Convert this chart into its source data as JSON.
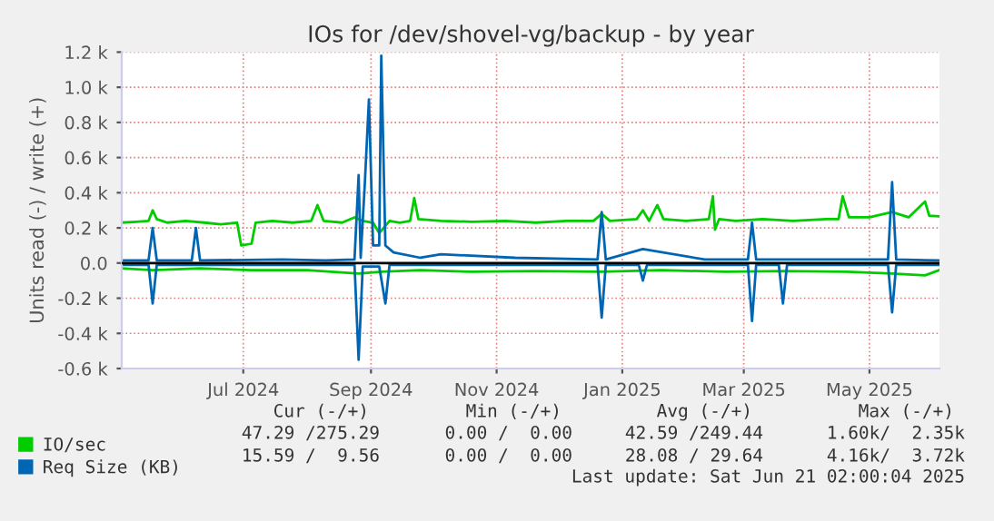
{
  "chart_data": {
    "type": "line",
    "title": "IOs for /dev/shovel-vg/backup - by year",
    "ylabel": "Units read (-) / write (+)",
    "xlim": [
      "2024-05-03",
      "2025-06-04"
    ],
    "xticks": [
      {
        "value": "2024-07-01",
        "label": "Jul 2024"
      },
      {
        "value": "2024-09-01",
        "label": "Sep 2024"
      },
      {
        "value": "2024-11-01",
        "label": "Nov 2024"
      },
      {
        "value": "2025-01-01",
        "label": "Jan 2025"
      },
      {
        "value": "2025-03-01",
        "label": "Mar 2025"
      },
      {
        "value": "2025-05-01",
        "label": "May 2025"
      }
    ],
    "ylim": [
      -600,
      1200
    ],
    "yticks": [
      {
        "value": -600,
        "label": "-0.6 k"
      },
      {
        "value": -400,
        "label": "-0.4 k"
      },
      {
        "value": -200,
        "label": "-0.2 k"
      },
      {
        "value": 0,
        "label": "0.0"
      },
      {
        "value": 200,
        "label": "0.2 k"
      },
      {
        "value": 400,
        "label": "0.4 k"
      },
      {
        "value": 600,
        "label": "0.6 k"
      },
      {
        "value": 800,
        "label": "0.8 k"
      },
      {
        "value": 1000,
        "label": "1.0 k"
      },
      {
        "value": 1200,
        "label": "1.2 k"
      }
    ],
    "grid": true,
    "legend": "bottom",
    "marker": "none",
    "line_style": "solid",
    "ref_lines": [
      {
        "axis": "y",
        "value": 0,
        "color": "#000000"
      }
    ],
    "series": [
      {
        "name": "IO/sec",
        "color": "#00cc00",
        "x": [
          "2024-05-03",
          "2024-05-10",
          "2024-05-16",
          "2024-05-18",
          "2024-05-20",
          "2024-05-25",
          "2024-06-03",
          "2024-06-12",
          "2024-06-20",
          "2024-06-28",
          "2024-06-30",
          "2024-07-05",
          "2024-07-07",
          "2024-07-15",
          "2024-07-25",
          "2024-08-03",
          "2024-08-06",
          "2024-08-09",
          "2024-08-18",
          "2024-08-24",
          "2024-08-28",
          "2024-09-02",
          "2024-09-05",
          "2024-09-10",
          "2024-09-15",
          "2024-09-20",
          "2024-09-22",
          "2024-09-24",
          "2024-10-05",
          "2024-10-20",
          "2024-11-05",
          "2024-11-20",
          "2024-12-05",
          "2024-12-18",
          "2024-12-22",
          "2024-12-26",
          "2025-01-08",
          "2025-01-11",
          "2025-01-14",
          "2025-01-18",
          "2025-01-21",
          "2025-02-01",
          "2025-02-12",
          "2025-02-14",
          "2025-02-15",
          "2025-02-17",
          "2025-02-25",
          "2025-03-10",
          "2025-03-25",
          "2025-04-10",
          "2025-04-16",
          "2025-04-18",
          "2025-04-21",
          "2025-05-01",
          "2025-05-12",
          "2025-05-20",
          "2025-05-28",
          "2025-05-30",
          "2025-06-04"
        ],
        "values": [
          230,
          235,
          240,
          300,
          250,
          230,
          240,
          230,
          220,
          230,
          100,
          110,
          230,
          240,
          230,
          240,
          330,
          240,
          230,
          260,
          240,
          230,
          170,
          240,
          230,
          240,
          370,
          250,
          240,
          235,
          240,
          230,
          240,
          240,
          280,
          240,
          250,
          300,
          240,
          330,
          250,
          240,
          250,
          380,
          190,
          250,
          240,
          250,
          240,
          250,
          250,
          380,
          260,
          260,
          290,
          260,
          350,
          270,
          265
        ]
      },
      {
        "color": "#00cc00",
        "x": [
          "2024-05-03",
          "2024-05-18",
          "2024-06-10",
          "2024-07-05",
          "2024-08-01",
          "2024-08-26",
          "2024-09-06",
          "2024-09-25",
          "2024-10-20",
          "2024-11-20",
          "2024-12-22",
          "2025-01-20",
          "2025-02-20",
          "2025-03-20",
          "2025-04-20",
          "2025-05-12",
          "2025-05-28",
          "2025-06-04"
        ],
        "values": [
          -30,
          -40,
          -30,
          -40,
          -40,
          -60,
          -50,
          -40,
          -50,
          -45,
          -50,
          -40,
          -50,
          -45,
          -50,
          -60,
          -70,
          -40
        ]
      },
      {
        "name": "Req Size (KB)",
        "color": "#0066b3",
        "x": [
          "2024-05-03",
          "2024-05-16",
          "2024-05-18",
          "2024-05-20",
          "2024-06-06",
          "2024-06-08",
          "2024-06-10",
          "2024-07-20",
          "2024-08-10",
          "2024-08-24",
          "2024-08-26",
          "2024-08-27",
          "2024-08-29",
          "2024-08-31",
          "2024-09-02",
          "2024-09-05",
          "2024-09-06",
          "2024-09-08",
          "2024-09-12",
          "2024-09-25",
          "2024-10-05",
          "2024-11-10",
          "2024-12-20",
          "2024-12-22",
          "2024-12-24",
          "2025-01-11",
          "2025-02-10",
          "2025-03-03",
          "2025-03-05",
          "2025-03-07",
          "2025-04-10",
          "2025-05-10",
          "2025-05-12",
          "2025-05-14",
          "2025-06-04"
        ],
        "values": [
          15,
          15,
          200,
          15,
          15,
          200,
          15,
          20,
          15,
          20,
          500,
          30,
          450,
          930,
          100,
          100,
          1180,
          100,
          60,
          30,
          50,
          30,
          20,
          290,
          20,
          80,
          20,
          20,
          230,
          20,
          20,
          20,
          460,
          20,
          15
        ]
      },
      {
        "color": "#0066b3",
        "x": [
          "2024-05-03",
          "2024-05-16",
          "2024-05-18",
          "2024-05-20",
          "2024-07-20",
          "2024-08-10",
          "2024-08-24",
          "2024-08-26",
          "2024-08-28",
          "2024-09-05",
          "2024-09-08",
          "2024-09-10",
          "2024-10-20",
          "2024-12-20",
          "2024-12-22",
          "2024-12-24",
          "2025-01-09",
          "2025-01-11",
          "2025-01-13",
          "2025-03-03",
          "2025-03-05",
          "2025-03-07",
          "2025-03-18",
          "2025-03-20",
          "2025-03-22",
          "2025-05-10",
          "2025-05-12",
          "2025-05-14",
          "2025-06-04"
        ],
        "values": [
          -10,
          -10,
          -230,
          -10,
          -10,
          -10,
          -10,
          -550,
          -20,
          -20,
          -230,
          -10,
          -10,
          -10,
          -310,
          -10,
          -10,
          -100,
          -10,
          -10,
          -330,
          -10,
          -10,
          -230,
          -10,
          -10,
          -280,
          -10,
          -10
        ]
      }
    ],
    "annotations": [
      "Cur (-/+)",
      "Min (-/+)",
      "Avg (-/+)",
      "Max (-/+)",
      "47.29 /275.29",
      "0.00 /  0.00",
      "42.59 /249.44",
      "1.60k/  2.35k",
      "15.59 /  9.56",
      "0.00 /  0.00",
      "28.08 / 29.64",
      "4.16k/  3.72k",
      "Last update: Sat Jun 21 02:00:04 2025"
    ]
  }
}
